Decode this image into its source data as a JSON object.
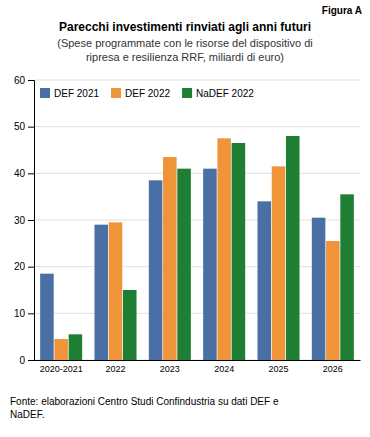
{
  "chart_data": {
    "type": "bar",
    "title": "Parecchi investimenti rinviati agli anni futuri",
    "subtitle": [
      "(Spese programmate con le risorse del dispositivo di",
      "ripresa e resilienza RRF, miliardi di euro)"
    ],
    "annotations": [
      "Figura A",
      "Fonte: elaborazioni Centro Studi Confindustria su dati DEF e",
      "NaDEF."
    ],
    "categories": [
      "2020-2021",
      "2022",
      "2023",
      "2024",
      "2025",
      "2026"
    ],
    "series": [
      {
        "name": "DEF 2021",
        "color": "#4a6fa5",
        "values": [
          18.5,
          29.0,
          38.5,
          41.0,
          34.0,
          30.5
        ]
      },
      {
        "name": "DEF 2022",
        "color": "#f0943a",
        "values": [
          4.5,
          29.5,
          43.5,
          47.5,
          41.5,
          25.5
        ]
      },
      {
        "name": "NaDEF 2022",
        "color": "#1e7e34",
        "values": [
          5.5,
          15.0,
          41.0,
          46.5,
          48.0,
          35.5
        ]
      }
    ],
    "ylim": [
      0,
      60
    ],
    "yticks": [
      0,
      10,
      20,
      30,
      40,
      50,
      60
    ],
    "grid": true,
    "legend": "upper left"
  }
}
